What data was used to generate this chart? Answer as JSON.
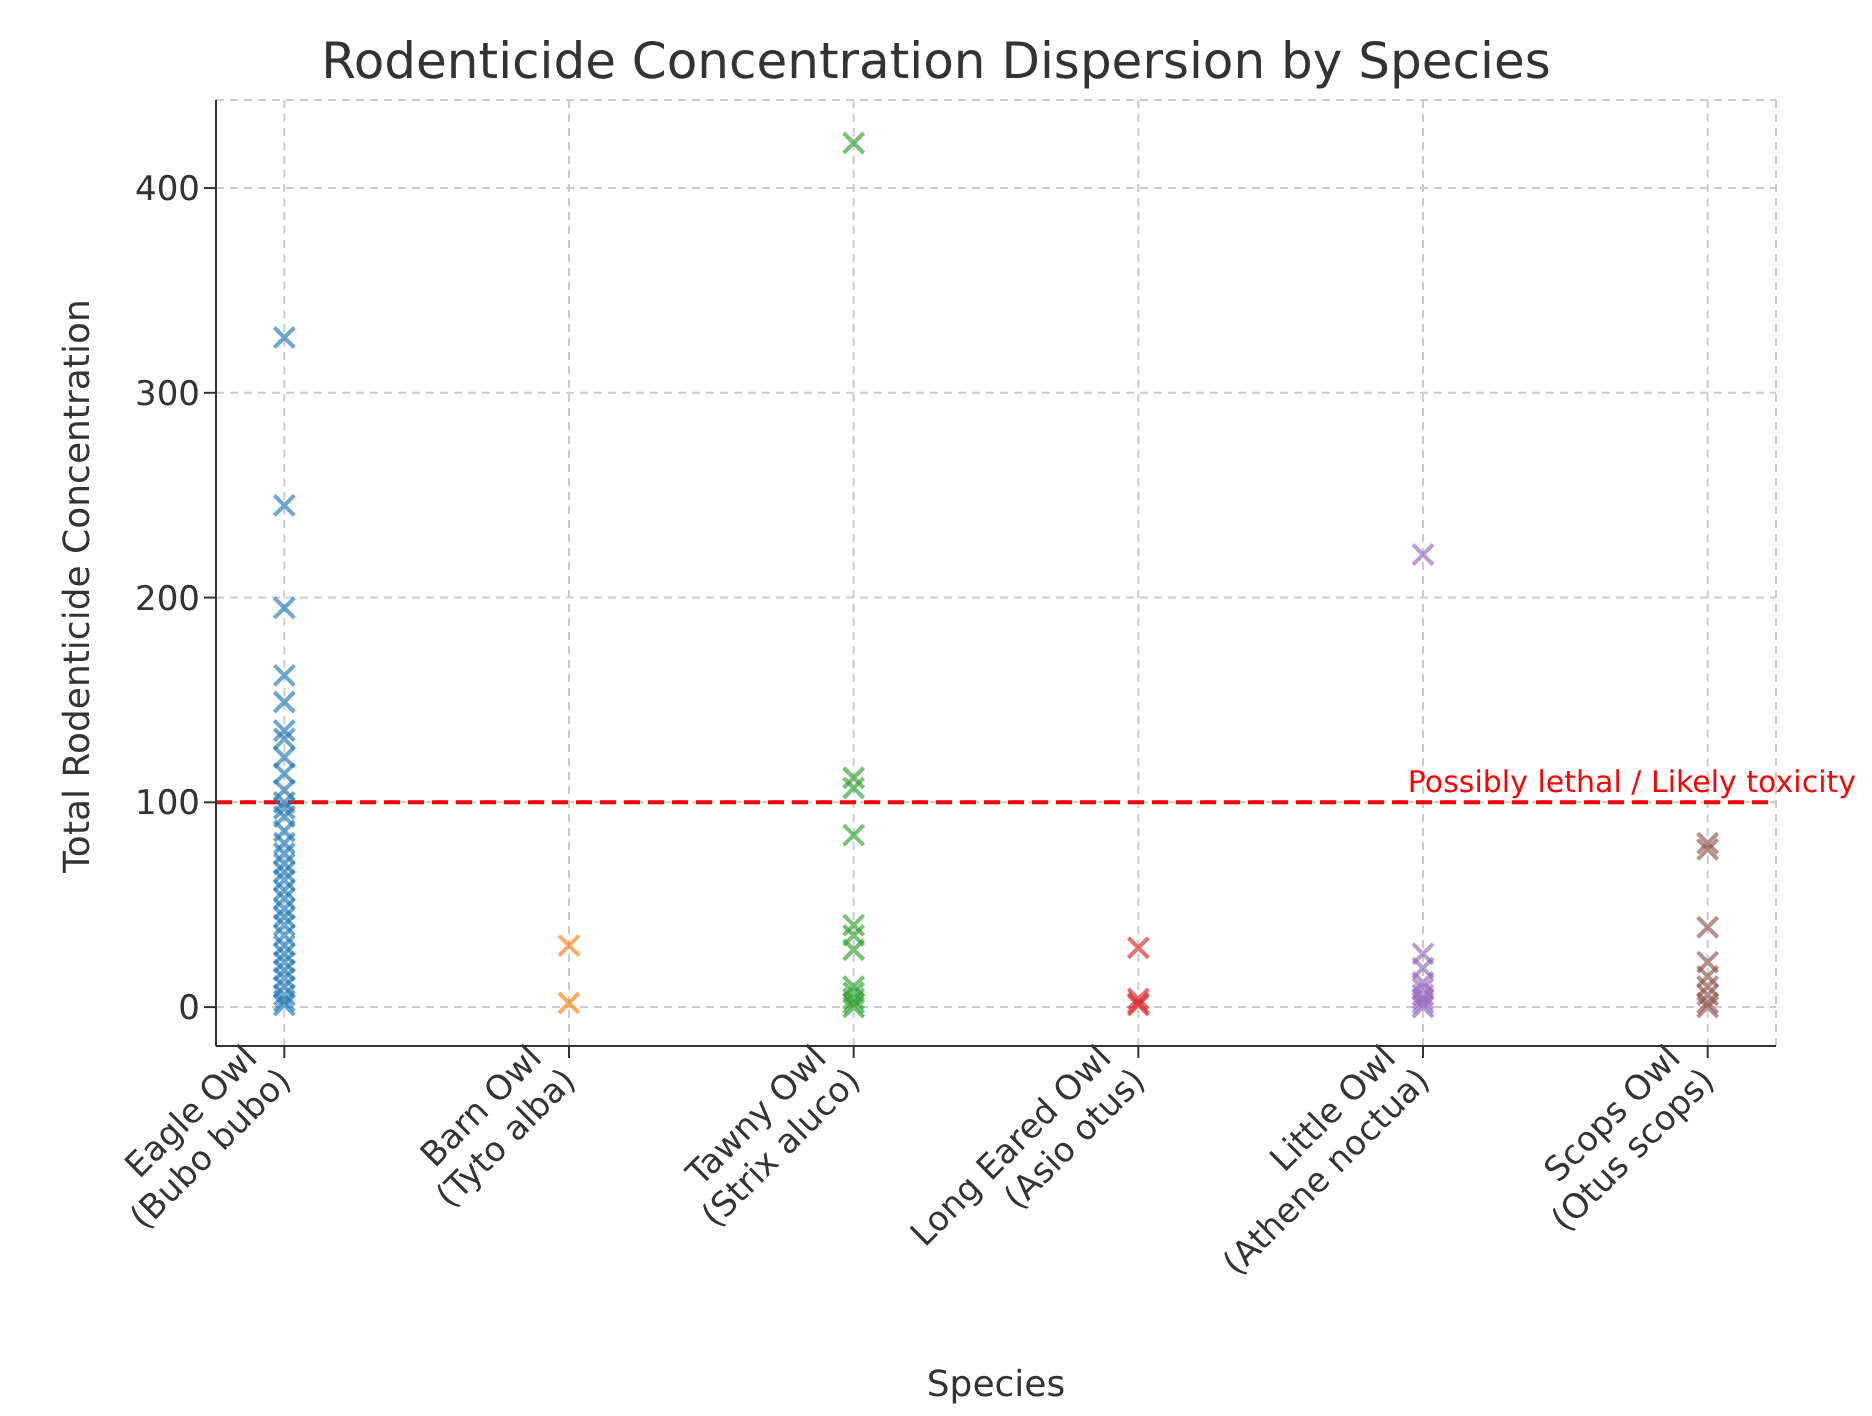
{
  "chart_data": {
    "type": "scatter",
    "title": "Rodenticide Concentration Dispersion by Species",
    "xlabel": "Species",
    "ylabel": "Total Rodenticide Concentration",
    "categories": [
      "Eagle Owl\n(Bubo bubo)",
      "Barn Owl\n(Tyto alba)",
      "Tawny Owl\n(Strix aluco)",
      "Long Eared Owl\n(Asio otus)",
      "Little Owl\n(Athene noctua)",
      "Scops Owl\n(Otus scops)"
    ],
    "series": [
      {
        "color": "#1f77b4",
        "x": [
          "Eagle Owl\n(Bubo bubo)",
          "Eagle Owl\n(Bubo bubo)",
          "Eagle Owl\n(Bubo bubo)",
          "Eagle Owl\n(Bubo bubo)",
          "Eagle Owl\n(Bubo bubo)",
          "Eagle Owl\n(Bubo bubo)",
          "Eagle Owl\n(Bubo bubo)",
          "Eagle Owl\n(Bubo bubo)",
          "Eagle Owl\n(Bubo bubo)",
          "Eagle Owl\n(Bubo bubo)",
          "Eagle Owl\n(Bubo bubo)",
          "Eagle Owl\n(Bubo bubo)",
          "Eagle Owl\n(Bubo bubo)",
          "Eagle Owl\n(Bubo bubo)",
          "Eagle Owl\n(Bubo bubo)",
          "Eagle Owl\n(Bubo bubo)",
          "Eagle Owl\n(Bubo bubo)",
          "Eagle Owl\n(Bubo bubo)",
          "Eagle Owl\n(Bubo bubo)",
          "Eagle Owl\n(Bubo bubo)",
          "Eagle Owl\n(Bubo bubo)",
          "Eagle Owl\n(Bubo bubo)",
          "Eagle Owl\n(Bubo bubo)",
          "Eagle Owl\n(Bubo bubo)",
          "Eagle Owl\n(Bubo bubo)",
          "Eagle Owl\n(Bubo bubo)",
          "Eagle Owl\n(Bubo bubo)",
          "Eagle Owl\n(Bubo bubo)",
          "Eagle Owl\n(Bubo bubo)",
          "Eagle Owl\n(Bubo bubo)",
          "Eagle Owl\n(Bubo bubo)",
          "Eagle Owl\n(Bubo bubo)",
          "Eagle Owl\n(Bubo bubo)",
          "Eagle Owl\n(Bubo bubo)"
        ],
        "values": [
          327,
          245,
          195,
          162,
          149,
          135,
          131,
          122,
          114,
          106,
          100,
          97,
          93,
          86,
          80,
          75,
          70,
          66,
          62,
          57,
          53,
          48,
          44,
          40,
          35,
          30,
          26,
          22,
          18,
          14,
          10,
          6,
          3,
          1
        ]
      },
      {
        "color": "#ff7f0e",
        "x": [
          "Barn Owl\n(Tyto alba)",
          "Barn Owl\n(Tyto alba)"
        ],
        "values": [
          30,
          2
        ]
      },
      {
        "color": "#2ca02c",
        "x": [
          "Tawny Owl\n(Strix aluco)",
          "Tawny Owl\n(Strix aluco)",
          "Tawny Owl\n(Strix aluco)",
          "Tawny Owl\n(Strix aluco)",
          "Tawny Owl\n(Strix aluco)",
          "Tawny Owl\n(Strix aluco)",
          "Tawny Owl\n(Strix aluco)",
          "Tawny Owl\n(Strix aluco)",
          "Tawny Owl\n(Strix aluco)",
          "Tawny Owl\n(Strix aluco)",
          "Tawny Owl\n(Strix aluco)",
          "Tawny Owl\n(Strix aluco)"
        ],
        "values": [
          422,
          112,
          107,
          84,
          40,
          35,
          28,
          10,
          7,
          4,
          2,
          0
        ]
      },
      {
        "color": "#d62728",
        "x": [
          "Long Eared Owl\n(Asio otus)",
          "Long Eared Owl\n(Asio otus)",
          "Long Eared Owl\n(Asio otus)",
          "Long Eared Owl\n(Asio otus)"
        ],
        "values": [
          29,
          4,
          2,
          1
        ]
      },
      {
        "color": "#9467bd",
        "x": [
          "Little Owl\n(Athene noctua)",
          "Little Owl\n(Athene noctua)",
          "Little Owl\n(Athene noctua)",
          "Little Owl\n(Athene noctua)",
          "Little Owl\n(Athene noctua)",
          "Little Owl\n(Athene noctua)",
          "Little Owl\n(Athene noctua)",
          "Little Owl\n(Athene noctua)",
          "Little Owl\n(Athene noctua)"
        ],
        "values": [
          221,
          26,
          19,
          12,
          9,
          6,
          4,
          2,
          0
        ]
      },
      {
        "color": "#8c564b",
        "x": [
          "Scops Owl\n(Otus scops)",
          "Scops Owl\n(Otus scops)",
          "Scops Owl\n(Otus scops)",
          "Scops Owl\n(Otus scops)",
          "Scops Owl\n(Otus scops)",
          "Scops Owl\n(Otus scops)",
          "Scops Owl\n(Otus scops)",
          "Scops Owl\n(Otus scops)",
          "Scops Owl\n(Otus scops)"
        ],
        "values": [
          80,
          77,
          39,
          22,
          15,
          10,
          6,
          2,
          0
        ]
      }
    ],
    "ylim": [
      -19,
      443
    ],
    "yticks": [
      0,
      100,
      200,
      300,
      400
    ],
    "grid": true,
    "marker": "cross",
    "ref_lines": [
      {
        "axis": "y",
        "value": 100,
        "label": "Possibly lethal / Likely toxicity",
        "color": "#ff0000",
        "line_style": "dashed"
      }
    ]
  }
}
